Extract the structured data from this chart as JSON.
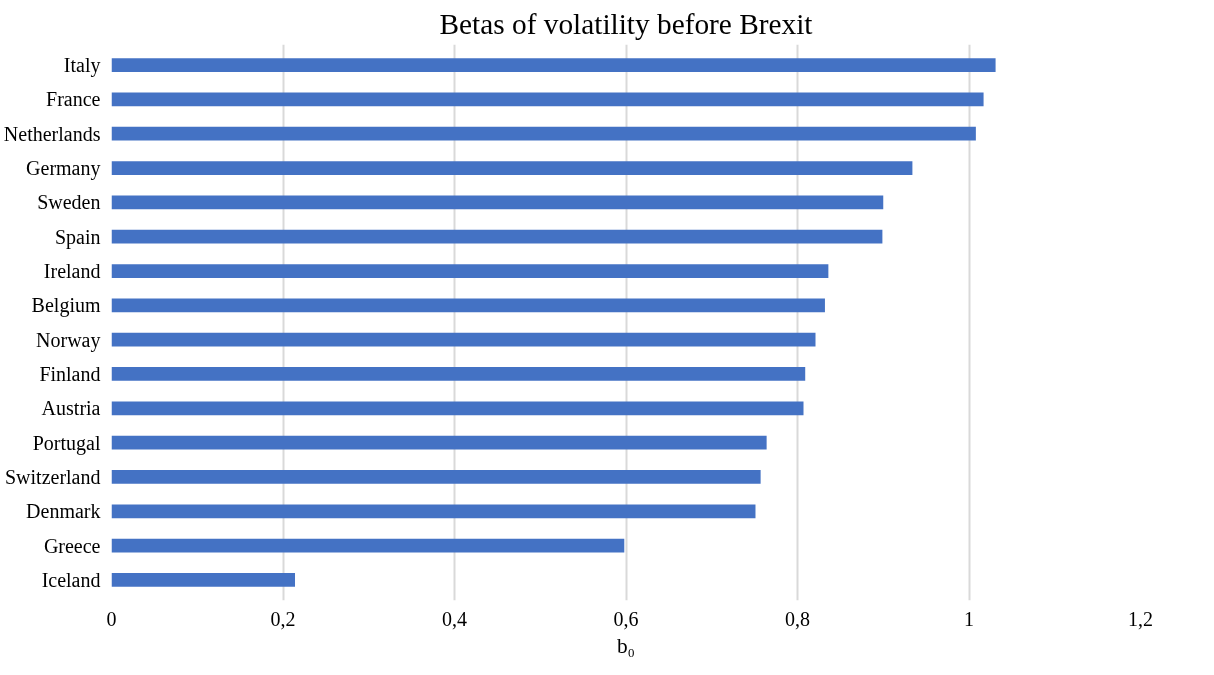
{
  "chart_data": {
    "type": "bar",
    "orientation": "horizontal",
    "title": "Betas of volatility before Brexit",
    "xlabel": "b₀",
    "categories": [
      "Italy",
      "France",
      "Netherlands",
      "Germany",
      "Sweden",
      "Spain",
      "Ireland",
      "Belgium",
      "Norway",
      "Finland",
      "Austria",
      "Portugal",
      "Switzerland",
      "Denmark",
      "Greece",
      "Iceland"
    ],
    "values": [
      1.031,
      1.017,
      1.008,
      0.934,
      0.9,
      0.899,
      0.836,
      0.832,
      0.821,
      0.809,
      0.807,
      0.764,
      0.757,
      0.751,
      0.598,
      0.214
    ],
    "color": "#4472c4",
    "xlim": [
      0,
      1.2
    ],
    "xticks": [
      0,
      {
        "value": 0.2,
        "label": "0,2"
      },
      {
        "value": 0.4,
        "label": "0,4"
      },
      {
        "value": 0.6,
        "label": "0,6"
      },
      {
        "value": 0.8,
        "label": "0,8"
      },
      1,
      {
        "value": 1.2,
        "label": "1,2"
      }
    ],
    "grid": "x"
  }
}
